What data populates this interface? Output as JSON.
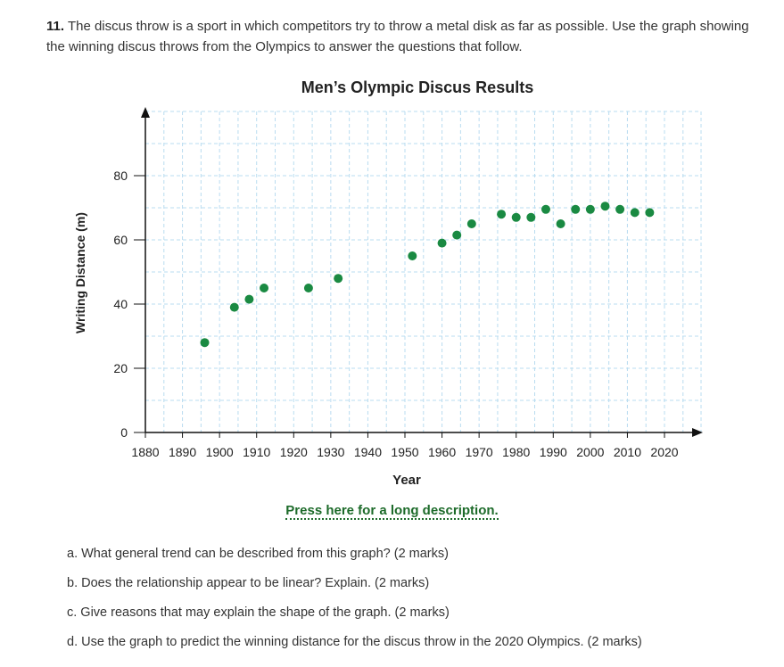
{
  "question": {
    "number": "11.",
    "text": "The discus throw is a sport in which competitors try to throw a metal disk as far as possible. Use the graph showing the winning discus throws from the Olympics to answer the questions that follow."
  },
  "chart_data": {
    "type": "scatter",
    "title": "Men’s Olympic Discus Results",
    "xlabel": "Year",
    "ylabel": "Writing Distance (m)",
    "xlim": [
      1880,
      2020
    ],
    "ylim": [
      0,
      80
    ],
    "xticks": [
      1880,
      1890,
      1900,
      1910,
      1920,
      1930,
      1940,
      1950,
      1960,
      1970,
      1980,
      1990,
      2000,
      2010,
      2020
    ],
    "yticks": [
      0,
      20,
      40,
      60,
      80
    ],
    "grid": true,
    "point_color": "#1a8a42",
    "points": [
      {
        "x": 1896,
        "y": 28
      },
      {
        "x": 1904,
        "y": 39
      },
      {
        "x": 1908,
        "y": 41.5
      },
      {
        "x": 1912,
        "y": 45
      },
      {
        "x": 1924,
        "y": 45
      },
      {
        "x": 1932,
        "y": 48
      },
      {
        "x": 1952,
        "y": 55
      },
      {
        "x": 1960,
        "y": 59
      },
      {
        "x": 1964,
        "y": 61.5
      },
      {
        "x": 1968,
        "y": 65
      },
      {
        "x": 1976,
        "y": 68
      },
      {
        "x": 1980,
        "y": 67
      },
      {
        "x": 1984,
        "y": 67
      },
      {
        "x": 1988,
        "y": 69.5
      },
      {
        "x": 1992,
        "y": 65
      },
      {
        "x": 1996,
        "y": 69.5
      },
      {
        "x": 2000,
        "y": 69.5
      },
      {
        "x": 2004,
        "y": 70.5
      },
      {
        "x": 2008,
        "y": 69.5
      },
      {
        "x": 2012,
        "y": 68.5
      },
      {
        "x": 2016,
        "y": 68.5
      }
    ]
  },
  "long_description_link": "Press here for a long description.",
  "parts": [
    "a. What general trend can be described from this graph? (2 marks)",
    "b. Does the relationship appear to be linear? Explain. (2 marks)",
    "c. Give reasons that may explain the shape of the graph. (2 marks)",
    "d. Use the graph to predict the winning distance for the discus throw in the 2020 Olympics. (2 marks)"
  ]
}
